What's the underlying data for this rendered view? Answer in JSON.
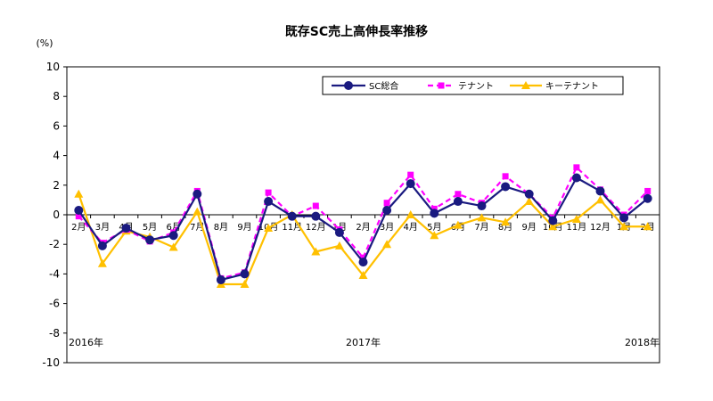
{
  "chart_data": {
    "type": "line",
    "title": "既存SC売上高伸長率推移",
    "ylabel": "(%)",
    "xlabel": "",
    "ylim": [
      -10,
      10
    ],
    "yticks": [
      10,
      8,
      6,
      4,
      2,
      0,
      -2,
      -4,
      -6,
      -8,
      -10
    ],
    "grid": false,
    "legend_position": "top-right",
    "categories": [
      "2月",
      "3月",
      "4月",
      "5月",
      "6月",
      "7月",
      "8月",
      "9月",
      "10月",
      "11月",
      "12月",
      "1月",
      "2月",
      "3月",
      "4月",
      "5月",
      "6月",
      "7月",
      "8月",
      "9月",
      "10月",
      "11月",
      "12月",
      "1月",
      "2月"
    ],
    "year_labels": [
      {
        "index": 0,
        "text": "2016年"
      },
      {
        "index": 12,
        "text": "2017年"
      },
      {
        "index": 24,
        "text": "2018年"
      }
    ],
    "series": [
      {
        "name": "SC総合",
        "color": "#1a1a80",
        "marker": "circle",
        "dash": "solid",
        "values": [
          0.3,
          -2.1,
          -0.9,
          -1.7,
          -1.4,
          1.4,
          -4.4,
          -4.0,
          0.9,
          -0.1,
          -0.1,
          -1.2,
          -3.2,
          0.3,
          2.1,
          0.1,
          0.9,
          0.6,
          1.9,
          1.4,
          -0.4,
          2.5,
          1.6,
          -0.2,
          1.1
        ]
      },
      {
        "name": "テナント",
        "color": "#ff00ff",
        "marker": "square",
        "dash": "dashed",
        "values": [
          -0.1,
          -1.9,
          -1.0,
          -1.8,
          -1.2,
          1.6,
          -4.3,
          -3.9,
          1.5,
          -0.1,
          0.6,
          -1.0,
          -2.9,
          0.8,
          2.7,
          0.4,
          1.4,
          0.8,
          2.6,
          1.4,
          -0.2,
          3.2,
          1.7,
          0.0,
          1.6
        ]
      },
      {
        "name": "キーテナント",
        "color": "#ffc000",
        "marker": "triangle",
        "dash": "solid",
        "values": [
          1.4,
          -3.3,
          -1.1,
          -1.5,
          -2.2,
          0.2,
          -4.7,
          -4.7,
          -0.9,
          0.0,
          -2.5,
          -2.1,
          -4.1,
          -2.0,
          0.0,
          -1.4,
          -0.7,
          -0.2,
          -0.5,
          0.9,
          -0.8,
          -0.3,
          1.0,
          -0.8,
          -0.8
        ]
      }
    ]
  }
}
